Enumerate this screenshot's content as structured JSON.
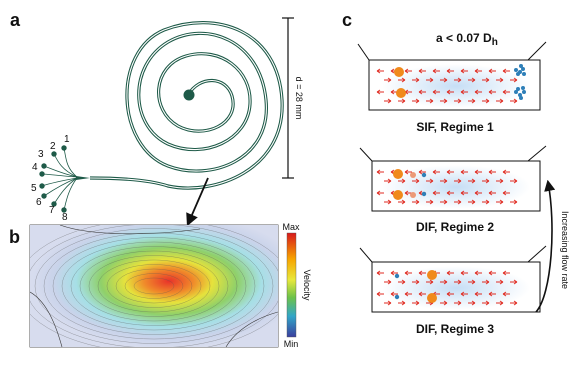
{
  "panels": {
    "a": "a",
    "b": "b",
    "c": "c"
  },
  "panel_a": {
    "dimension_label": "d = 28 mm",
    "outlet_numbers": [
      "1",
      "2",
      "3",
      "4",
      "5",
      "6",
      "7",
      "8"
    ]
  },
  "panel_b": {
    "colorbar_max": "Max",
    "colorbar_min": "Min",
    "colorbar_title": "Velocity"
  },
  "panel_c": {
    "condition_label": "a < 0.07 D",
    "condition_subscript": "h",
    "regime1": "SIF, Regime 1",
    "regime2": "DIF, Regime 2",
    "regime3": "DIF, Regime 3",
    "arrow_label": "Increasing flow rate"
  },
  "colors": {
    "channel": "#1e5a48",
    "flow_arrow": "#e02a20",
    "large_particle": "#f08a1c",
    "small_particle": "#2e7fb8",
    "stream_glow": "#cfe4f6"
  }
}
